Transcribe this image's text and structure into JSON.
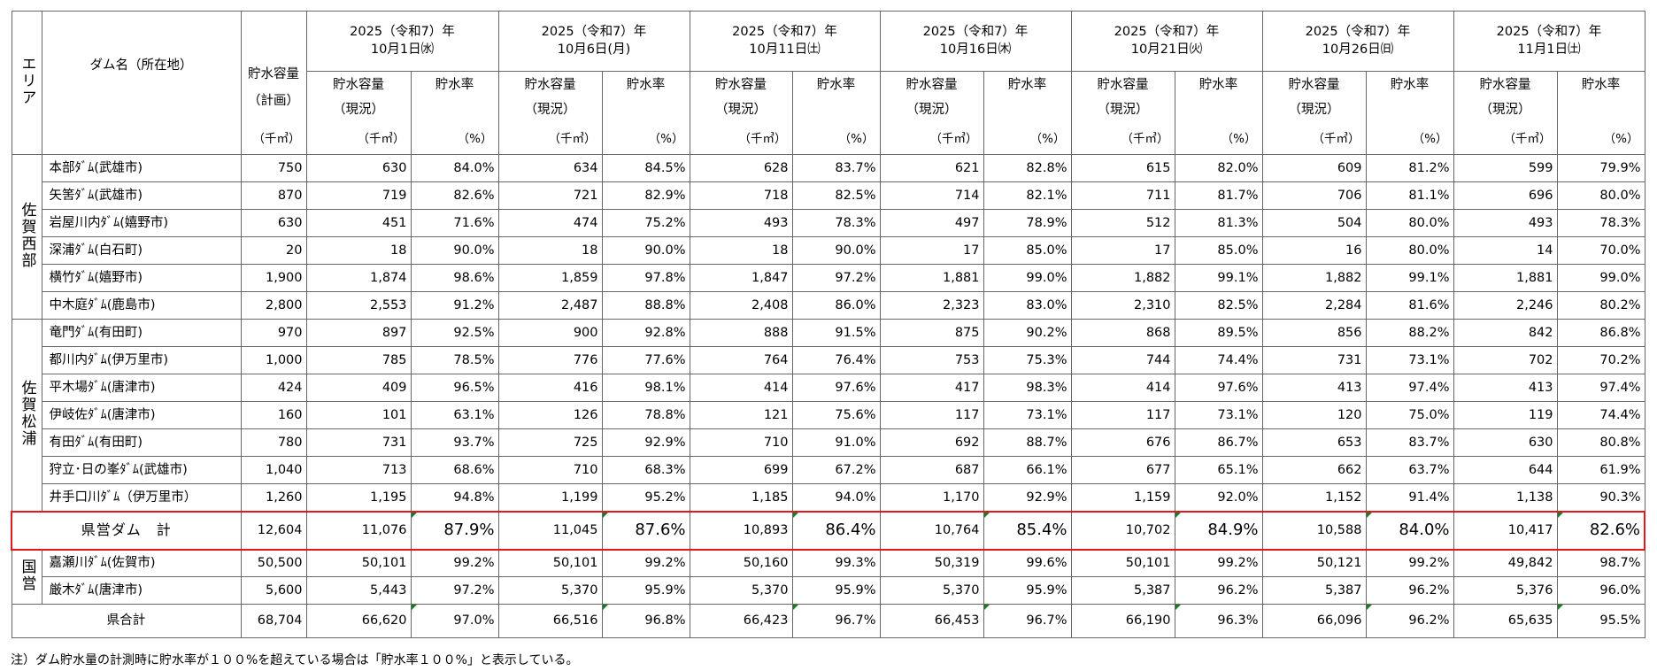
{
  "header": {
    "area_label": "エリア",
    "dam_name_label": "ダム名（所在地）",
    "plan_capacity_label": "貯水容量",
    "plan_label": "（計画）",
    "capacity_label": "貯水容量",
    "current_label": "（現況）",
    "rate_label": "貯水率",
    "unit_volume": "（千㎥）",
    "unit_percent": "（%）",
    "dates": [
      {
        "line1": "2025（令和7）年",
        "line2": "10月1日㈬"
      },
      {
        "line1": "2025（令和7）年",
        "line2": "10月6日(月)"
      },
      {
        "line1": "2025（令和7）年",
        "line2": "10月11日㈯"
      },
      {
        "line1": "2025（令和7）年",
        "line2": "10月16日㈭"
      },
      {
        "line1": "2025（令和7）年",
        "line2": "10月21日㈫"
      },
      {
        "line1": "2025（令和7）年",
        "line2": "10月26日㈰"
      },
      {
        "line1": "2025（令和7）年",
        "line2": "11月1日㈯"
      }
    ]
  },
  "areas": [
    {
      "label": "佐賀西部",
      "rows": [
        {
          "name": "本部ﾀﾞﾑ(武雄市)",
          "plan": "750",
          "vals": [
            [
              "630",
              "84.0%"
            ],
            [
              "634",
              "84.5%"
            ],
            [
              "628",
              "83.7%"
            ],
            [
              "621",
              "82.8%"
            ],
            [
              "615",
              "82.0%"
            ],
            [
              "609",
              "81.2%"
            ],
            [
              "599",
              "79.9%"
            ]
          ]
        },
        {
          "name": "矢筈ﾀﾞﾑ(武雄市)",
          "plan": "870",
          "vals": [
            [
              "719",
              "82.6%"
            ],
            [
              "721",
              "82.9%"
            ],
            [
              "718",
              "82.5%"
            ],
            [
              "714",
              "82.1%"
            ],
            [
              "711",
              "81.7%"
            ],
            [
              "706",
              "81.1%"
            ],
            [
              "696",
              "80.0%"
            ]
          ]
        },
        {
          "name": "岩屋川内ﾀﾞﾑ(嬉野市)",
          "plan": "630",
          "vals": [
            [
              "451",
              "71.6%"
            ],
            [
              "474",
              "75.2%"
            ],
            [
              "493",
              "78.3%"
            ],
            [
              "497",
              "78.9%"
            ],
            [
              "512",
              "81.3%"
            ],
            [
              "504",
              "80.0%"
            ],
            [
              "493",
              "78.3%"
            ]
          ]
        },
        {
          "name": "深浦ﾀﾞﾑ(白石町)",
          "plan": "20",
          "vals": [
            [
              "18",
              "90.0%"
            ],
            [
              "18",
              "90.0%"
            ],
            [
              "18",
              "90.0%"
            ],
            [
              "17",
              "85.0%"
            ],
            [
              "17",
              "85.0%"
            ],
            [
              "16",
              "80.0%"
            ],
            [
              "14",
              "70.0%"
            ]
          ]
        },
        {
          "name": "横竹ﾀﾞﾑ(嬉野市)",
          "plan": "1,900",
          "vals": [
            [
              "1,874",
              "98.6%"
            ],
            [
              "1,859",
              "97.8%"
            ],
            [
              "1,847",
              "97.2%"
            ],
            [
              "1,881",
              "99.0%"
            ],
            [
              "1,882",
              "99.1%"
            ],
            [
              "1,882",
              "99.1%"
            ],
            [
              "1,881",
              "99.0%"
            ]
          ]
        },
        {
          "name": "中木庭ﾀﾞﾑ(鹿島市)",
          "plan": "2,800",
          "vals": [
            [
              "2,553",
              "91.2%"
            ],
            [
              "2,487",
              "88.8%"
            ],
            [
              "2,408",
              "86.0%"
            ],
            [
              "2,323",
              "83.0%"
            ],
            [
              "2,310",
              "82.5%"
            ],
            [
              "2,284",
              "81.6%"
            ],
            [
              "2,246",
              "80.2%"
            ]
          ]
        }
      ]
    },
    {
      "label": "佐賀松浦",
      "rows": [
        {
          "name": "竜門ﾀﾞﾑ(有田町)",
          "plan": "970",
          "vals": [
            [
              "897",
              "92.5%"
            ],
            [
              "900",
              "92.8%"
            ],
            [
              "888",
              "91.5%"
            ],
            [
              "875",
              "90.2%"
            ],
            [
              "868",
              "89.5%"
            ],
            [
              "856",
              "88.2%"
            ],
            [
              "842",
              "86.8%"
            ]
          ]
        },
        {
          "name": "都川内ﾀﾞﾑ(伊万里市)",
          "plan": "1,000",
          "vals": [
            [
              "785",
              "78.5%"
            ],
            [
              "776",
              "77.6%"
            ],
            [
              "764",
              "76.4%"
            ],
            [
              "753",
              "75.3%"
            ],
            [
              "744",
              "74.4%"
            ],
            [
              "731",
              "73.1%"
            ],
            [
              "702",
              "70.2%"
            ]
          ]
        },
        {
          "name": "平木場ﾀﾞﾑ(唐津市)",
          "plan": "424",
          "vals": [
            [
              "409",
              "96.5%"
            ],
            [
              "416",
              "98.1%"
            ],
            [
              "414",
              "97.6%"
            ],
            [
              "417",
              "98.3%"
            ],
            [
              "414",
              "97.6%"
            ],
            [
              "413",
              "97.4%"
            ],
            [
              "413",
              "97.4%"
            ]
          ]
        },
        {
          "name": "伊岐佐ﾀﾞﾑ(唐津市)",
          "plan": "160",
          "vals": [
            [
              "101",
              "63.1%"
            ],
            [
              "126",
              "78.8%"
            ],
            [
              "121",
              "75.6%"
            ],
            [
              "117",
              "73.1%"
            ],
            [
              "117",
              "73.1%"
            ],
            [
              "120",
              "75.0%"
            ],
            [
              "119",
              "74.4%"
            ]
          ]
        },
        {
          "name": "有田ﾀﾞﾑ(有田町)",
          "plan": "780",
          "vals": [
            [
              "731",
              "93.7%"
            ],
            [
              "725",
              "92.9%"
            ],
            [
              "710",
              "91.0%"
            ],
            [
              "692",
              "88.7%"
            ],
            [
              "676",
              "86.7%"
            ],
            [
              "653",
              "83.7%"
            ],
            [
              "630",
              "80.8%"
            ]
          ]
        },
        {
          "name": "狩立･日の峯ﾀﾞﾑ(武雄市)",
          "plan": "1,040",
          "vals": [
            [
              "713",
              "68.6%"
            ],
            [
              "710",
              "68.3%"
            ],
            [
              "699",
              "67.2%"
            ],
            [
              "687",
              "66.1%"
            ],
            [
              "677",
              "65.1%"
            ],
            [
              "662",
              "63.7%"
            ],
            [
              "644",
              "61.9%"
            ]
          ]
        },
        {
          "name": "井手口川ﾀﾞﾑ（伊万里市）",
          "plan": "1,260",
          "vals": [
            [
              "1,195",
              "94.8%"
            ],
            [
              "1,199",
              "95.2%"
            ],
            [
              "1,185",
              "94.0%"
            ],
            [
              "1,170",
              "92.9%"
            ],
            [
              "1,159",
              "92.0%"
            ],
            [
              "1,152",
              "91.4%"
            ],
            [
              "1,138",
              "90.3%"
            ]
          ]
        }
      ]
    }
  ],
  "prefectural_total": {
    "name": "県営ダム　計",
    "plan": "12,604",
    "vals": [
      [
        "11,076",
        "87.9%"
      ],
      [
        "11,045",
        "87.6%"
      ],
      [
        "10,893",
        "86.4%"
      ],
      [
        "10,764",
        "85.4%"
      ],
      [
        "10,702",
        "84.9%"
      ],
      [
        "10,588",
        "84.0%"
      ],
      [
        "10,417",
        "82.6%"
      ]
    ]
  },
  "national": {
    "label": "国営",
    "rows": [
      {
        "name": "嘉瀬川ﾀﾞﾑ(佐賀市)",
        "plan": "50,500",
        "vals": [
          [
            "50,101",
            "99.2%"
          ],
          [
            "50,101",
            "99.2%"
          ],
          [
            "50,160",
            "99.3%"
          ],
          [
            "50,319",
            "99.6%"
          ],
          [
            "50,101",
            "99.2%"
          ],
          [
            "50,121",
            "99.2%"
          ],
          [
            "49,842",
            "98.7%"
          ]
        ]
      },
      {
        "name": "厳木ﾀﾞﾑ(唐津市)",
        "plan": "5,600",
        "vals": [
          [
            "5,443",
            "97.2%"
          ],
          [
            "5,370",
            "95.9%"
          ],
          [
            "5,370",
            "95.9%"
          ],
          [
            "5,370",
            "95.9%"
          ],
          [
            "5,387",
            "96.2%"
          ],
          [
            "5,387",
            "96.2%"
          ],
          [
            "5,376",
            "96.0%"
          ]
        ]
      }
    ]
  },
  "grand_total": {
    "name": "県合計",
    "plan": "68,704",
    "vals": [
      [
        "66,620",
        "97.0%"
      ],
      [
        "66,516",
        "96.8%"
      ],
      [
        "66,423",
        "96.7%"
      ],
      [
        "66,453",
        "96.7%"
      ],
      [
        "66,190",
        "96.3%"
      ],
      [
        "66,096",
        "96.2%"
      ],
      [
        "65,635",
        "95.5%"
      ]
    ]
  },
  "note": "注）ダム貯水量の計測時に貯水率が１００%を超えている場合は「貯水率１００%」と表示している。"
}
